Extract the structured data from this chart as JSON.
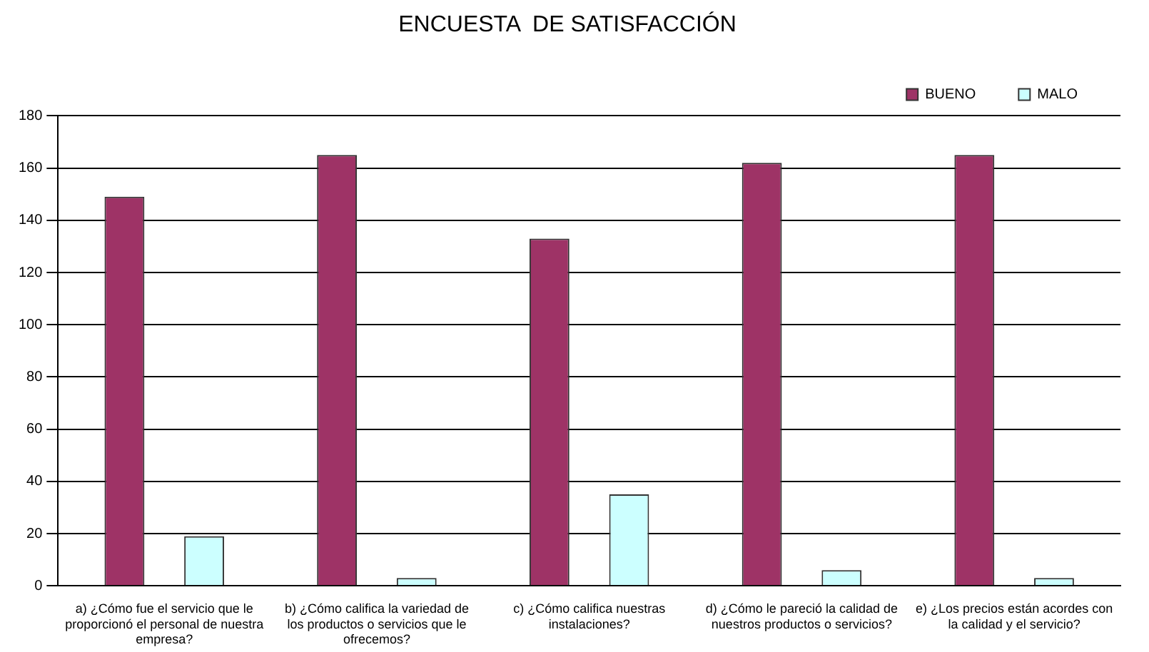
{
  "chart_data": {
    "type": "bar",
    "title": "ENCUESTA  DE SATISFACCIÓN",
    "categories": [
      "a) ¿Cómo fue el servicio que le proporcionó el personal de nuestra empresa?",
      "b) ¿Cómo califica la variedad de los productos o servicios que le ofrecemos?",
      "c) ¿Cómo califica nuestras instalaciones?",
      "d) ¿Cómo le pareció la calidad de nuestros productos o servicios?",
      "e) ¿Los precios están acordes con la calidad y el servicio?"
    ],
    "series": [
      {
        "name": "BUENO",
        "color": "#9e3366",
        "values": [
          149,
          165,
          133,
          162,
          165
        ]
      },
      {
        "name": "MALO",
        "color": "#ccffff",
        "values": [
          19,
          3,
          35,
          6,
          3
        ]
      }
    ],
    "ylim": [
      0,
      180
    ],
    "yticks": [
      0,
      20,
      40,
      60,
      80,
      100,
      120,
      140,
      160,
      180
    ],
    "grid": "y",
    "legend": "top right"
  }
}
